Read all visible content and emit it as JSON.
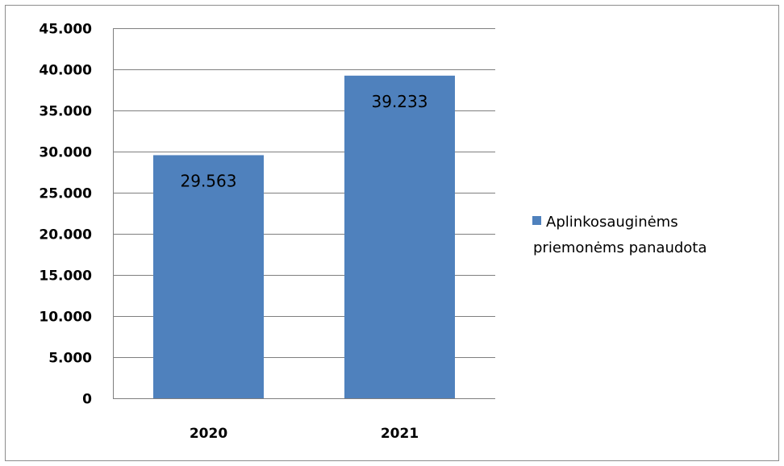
{
  "chart_data": {
    "type": "bar",
    "categories": [
      "2020",
      "2021"
    ],
    "series": [
      {
        "name": "Aplinkosauginėms priemonėms panaudota",
        "values": [
          29563,
          39233
        ],
        "value_labels": [
          "29.563",
          "39.233"
        ]
      }
    ],
    "ylim": [
      0,
      45000
    ],
    "y_ticks": [
      0,
      5000,
      10000,
      15000,
      20000,
      25000,
      30000,
      35000,
      40000,
      45000
    ],
    "y_tick_labels": [
      "0",
      "5.000",
      "10.000",
      "15.000",
      "20.000",
      "25.000",
      "30.000",
      "35.000",
      "40.000",
      "45.000"
    ],
    "grid": true,
    "legend": {
      "position": "right",
      "lines": [
        "Aplinkosauginėms",
        "priemonėms panaudota"
      ]
    },
    "colors": {
      "bar": "#4f81bd",
      "grid": "#7f7f7f",
      "frame": "#8c8c8c"
    }
  }
}
